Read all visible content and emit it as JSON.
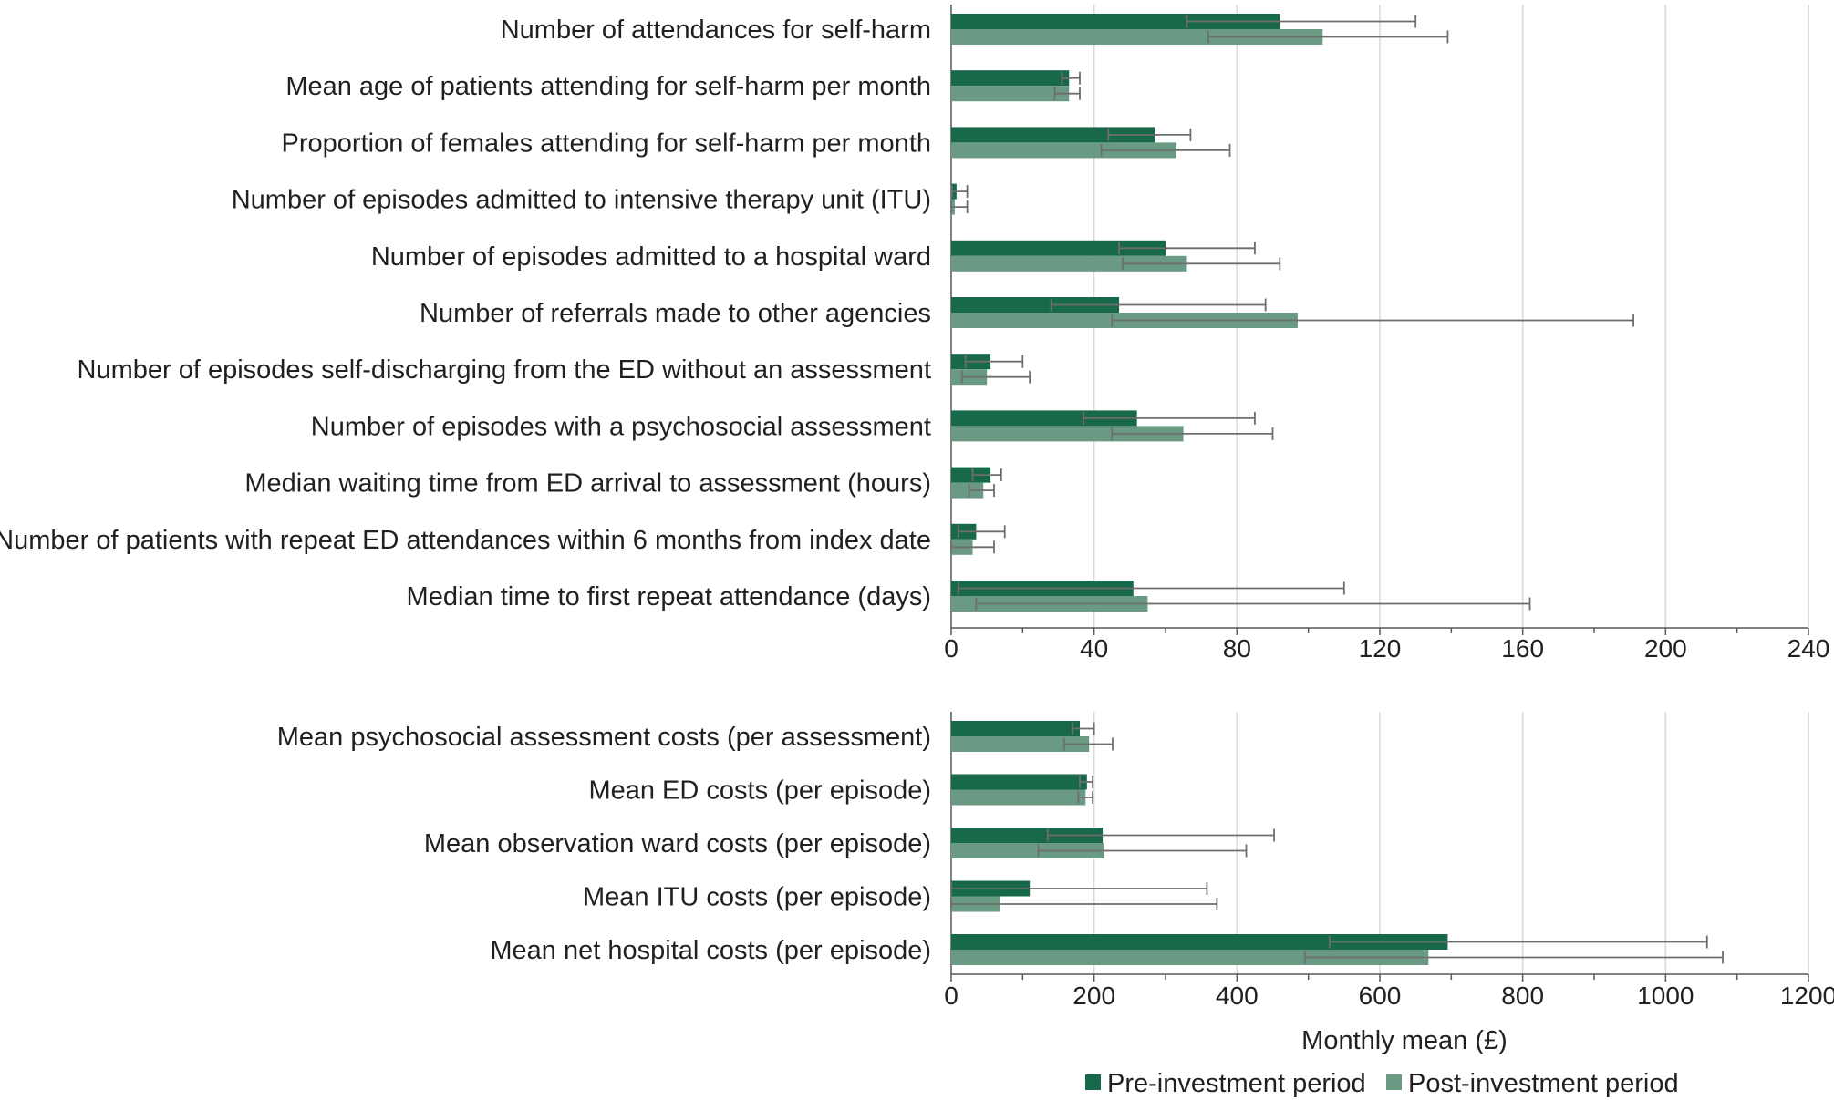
{
  "chart_data": [
    {
      "type": "bar",
      "orientation": "horizontal",
      "categories": [
        "Number of attendances for self-harm",
        "Mean age of patients attending for self-harm per month",
        "Proportion of females attending for self-harm per month",
        "Number of episodes admitted to intensive therapy unit (ITU)",
        "Number of episodes admitted to a hospital ward",
        "Number of referrals made to other agencies",
        "Number of episodes self-discharging from the ED without an assessment",
        "Number of episodes with a psychosocial assessment",
        "Median waiting time from ED arrival to assessment (hours)",
        "Number of patients with repeat ED attendances within 6 months from index date",
        "Median time to first repeat attendance (days)"
      ],
      "series": [
        {
          "name": "Pre-investment period",
          "values": [
            92,
            33,
            57,
            1.5,
            60,
            47,
            11,
            52,
            11,
            7,
            51
          ],
          "error_low": [
            66,
            31,
            44,
            0.2,
            47,
            28,
            4,
            37,
            6,
            2,
            2
          ],
          "error_high": [
            130,
            36,
            67,
            4.5,
            85,
            88,
            20,
            85,
            14,
            15,
            110
          ]
        },
        {
          "name": "Post-investment period",
          "values": [
            104,
            33,
            63,
            1,
            66,
            97,
            10,
            65,
            9,
            6,
            55
          ],
          "error_low": [
            72,
            29,
            42,
            0,
            48,
            45,
            3,
            45,
            5,
            0,
            7
          ],
          "error_high": [
            139,
            36,
            78,
            4.5,
            92,
            191,
            22,
            90,
            12,
            12,
            162
          ]
        }
      ],
      "xlim": [
        0,
        240
      ],
      "xticks": [
        "0",
        "40",
        "80",
        "120",
        "160",
        "200",
        "240"
      ],
      "grid": true
    },
    {
      "type": "bar",
      "orientation": "horizontal",
      "categories": [
        "Mean psychosocial assessment costs (per assessment)",
        "Mean ED costs (per episode)",
        "Mean observation ward costs (per episode)",
        "Mean ITU costs (per episode)",
        "Mean net hospital costs (per episode)"
      ],
      "series": [
        {
          "name": "Pre-investment period",
          "values": [
            180,
            190,
            212,
            110,
            695
          ],
          "error_low": [
            170,
            180,
            135,
            0,
            530
          ],
          "error_high": [
            200,
            198,
            452,
            358,
            1058
          ]
        },
        {
          "name": "Post-investment period",
          "values": [
            193,
            188,
            214,
            68,
            668
          ],
          "error_low": [
            158,
            178,
            122,
            0,
            495
          ],
          "error_high": [
            226,
            198,
            413,
            372,
            1080
          ]
        }
      ],
      "xlim": [
        0,
        1200
      ],
      "xticks": [
        "0",
        "200",
        "400",
        "600",
        "800",
        "1000",
        "1200"
      ],
      "xlabel": "Monthly mean (£)",
      "grid": true
    }
  ],
  "legend": {
    "placement": "bottom-right",
    "items": [
      "Pre-investment period",
      "Post-investment period"
    ]
  },
  "colors": {
    "pre": "#17694a",
    "post": "#6a9a84",
    "grid": "#d9d9d9",
    "axis": "#595959",
    "error": "#6e6e6e"
  }
}
